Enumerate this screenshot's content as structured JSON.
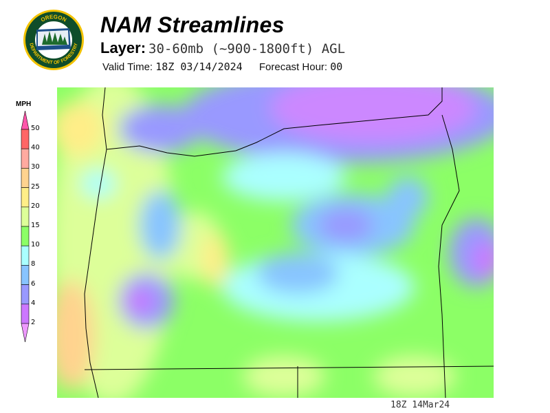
{
  "logo": {
    "top_text": "OREGON",
    "bottom_text": "DEPARTMENT OF FORESTRY"
  },
  "header": {
    "title": "NAM Streamlines",
    "layer_label": "Layer:",
    "layer_value": "30-60mb (~900-1800ft) AGL",
    "valid_label": "Valid Time:",
    "valid_value": "18Z 03/14/2024",
    "forecast_label": "Forecast Hour:",
    "forecast_value": "00"
  },
  "legend": {
    "unit": "MPH",
    "ticks": [
      "50",
      "40",
      "30",
      "25",
      "20",
      "15",
      "10",
      "8",
      "6",
      "4",
      "2"
    ],
    "colors": {
      "above_50": "#ff55aa",
      "40-50": "#ff6666",
      "30-40": "#ffaaa0",
      "25-30": "#ffd38f",
      "20-25": "#ffee88",
      "15-20": "#ddff99",
      "10-15": "#8cff66",
      "8-10": "#aaffff",
      "6-8": "#88c4ff",
      "4-6": "#9999ff",
      "2-4": "#cc77ff",
      "below_2": "#ee99ff"
    }
  },
  "footer": {
    "timestamp": "18Z 14Mar24"
  }
}
